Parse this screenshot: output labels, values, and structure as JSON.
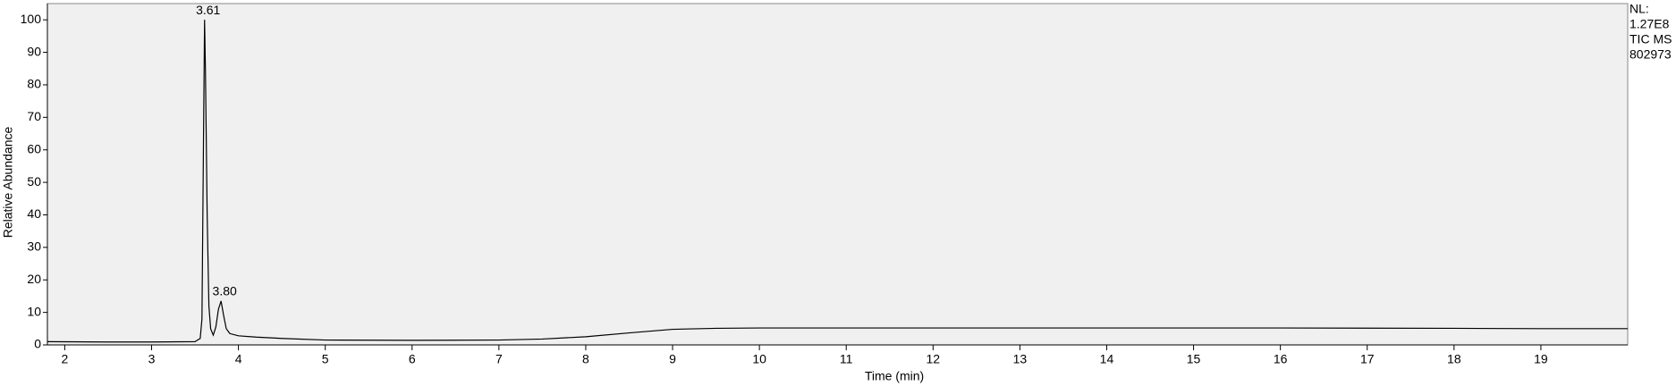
{
  "chart_data": {
    "type": "line",
    "x_label": "Time (min)",
    "y_label": "Relative Abundance",
    "x": [
      1.8,
      2.5,
      3.0,
      3.5,
      3.56,
      3.58,
      3.6,
      3.61,
      3.62,
      3.64,
      3.66,
      3.68,
      3.71,
      3.74,
      3.77,
      3.8,
      3.83,
      3.86,
      3.9,
      4.0,
      4.2,
      4.5,
      5.0,
      6.0,
      7.0,
      7.5,
      8.0,
      8.5,
      9.0,
      9.5,
      10.0,
      11.0,
      12.0,
      14.0,
      16.0,
      18.0,
      19.0,
      20.0
    ],
    "series": [
      {
        "name": "TIC",
        "color": "#000000",
        "values": [
          1.0,
          0.9,
          0.9,
          1.0,
          2.0,
          8.0,
          70.0,
          100.0,
          85.0,
          40.0,
          12.0,
          5.0,
          3.0,
          5.5,
          11.0,
          13.5,
          9.0,
          5.0,
          3.5,
          2.8,
          2.4,
          2.0,
          1.5,
          1.4,
          1.5,
          1.8,
          2.5,
          3.7,
          4.8,
          5.1,
          5.2,
          5.2,
          5.2,
          5.2,
          5.2,
          5.1,
          5.0,
          5.0
        ]
      }
    ],
    "annotations": [
      {
        "text": "3.61",
        "x": 3.61,
        "y": 100
      },
      {
        "text": "3.80",
        "x": 3.8,
        "y": 13.5
      }
    ],
    "info": [
      "NL:",
      "1.27E8",
      "TIC  MS",
      "802973"
    ],
    "xlim": [
      1.8,
      20.0
    ],
    "ylim": [
      0,
      105
    ],
    "xticks": [
      2,
      3,
      4,
      5,
      6,
      7,
      8,
      9,
      10,
      11,
      12,
      13,
      14,
      15,
      16,
      17,
      18,
      19
    ],
    "yticks": [
      0,
      10,
      20,
      30,
      40,
      50,
      60,
      70,
      80,
      90,
      100
    ],
    "background": "#f0f0f0"
  }
}
